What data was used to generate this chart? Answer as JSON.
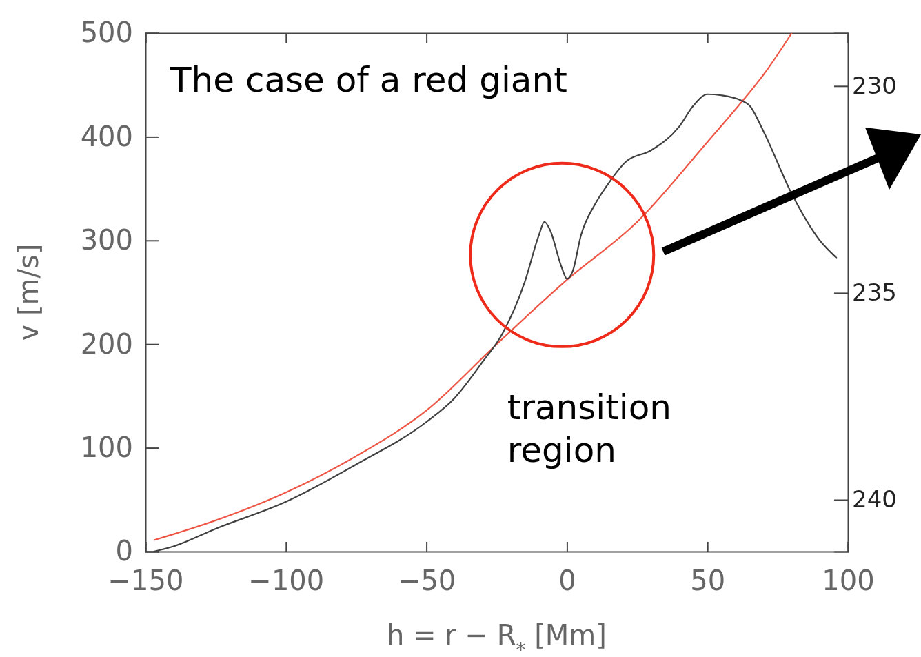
{
  "chart_data": {
    "type": "line",
    "title": "The case of a red giant",
    "xlabel": "h = r − R$_{*}$ [Mm]",
    "ylabel": "v [m/s]",
    "annotations": [
      "transition region"
    ],
    "xlim": [
      -150,
      100
    ],
    "xticks": [
      -150,
      -100,
      -50,
      0,
      50,
      100
    ],
    "ylim": [
      0,
      500
    ],
    "yticks": [
      0,
      100,
      200,
      300,
      400,
      500
    ],
    "y2lim": [
      241.25,
      228.72
    ],
    "y2ticks": [
      230,
      235,
      240
    ],
    "grid": false,
    "marker": "none",
    "line_style": "solid",
    "series": [
      {
        "color": "#ee5544",
        "x": [
          -147,
          -125,
          -100,
          -75,
          -50,
          -25,
          0,
          25,
          50,
          62,
          70,
          80
        ],
        "values": [
          11,
          30,
          57,
          92,
          136,
          200,
          262,
          318,
          395,
          433,
          460,
          500
        ]
      },
      {
        "color": "#404040",
        "x": [
          -147,
          -140,
          -125,
          -100,
          -75,
          -50,
          -40,
          -30,
          -23,
          -15,
          -10,
          -8,
          -6,
          -2,
          0,
          2,
          5,
          10,
          14,
          21,
          30,
          40,
          45,
          50,
          55,
          62,
          65,
          70,
          80,
          90,
          96
        ],
        "values": [
          0,
          5,
          22,
          48,
          84,
          125,
          148,
          183,
          210,
          260,
          305,
          318,
          310,
          275,
          263,
          270,
          305,
          335,
          352,
          376,
          387,
          410,
          430,
          441,
          440,
          435,
          430,
          405,
          345,
          300,
          283
        ]
      }
    ]
  }
}
